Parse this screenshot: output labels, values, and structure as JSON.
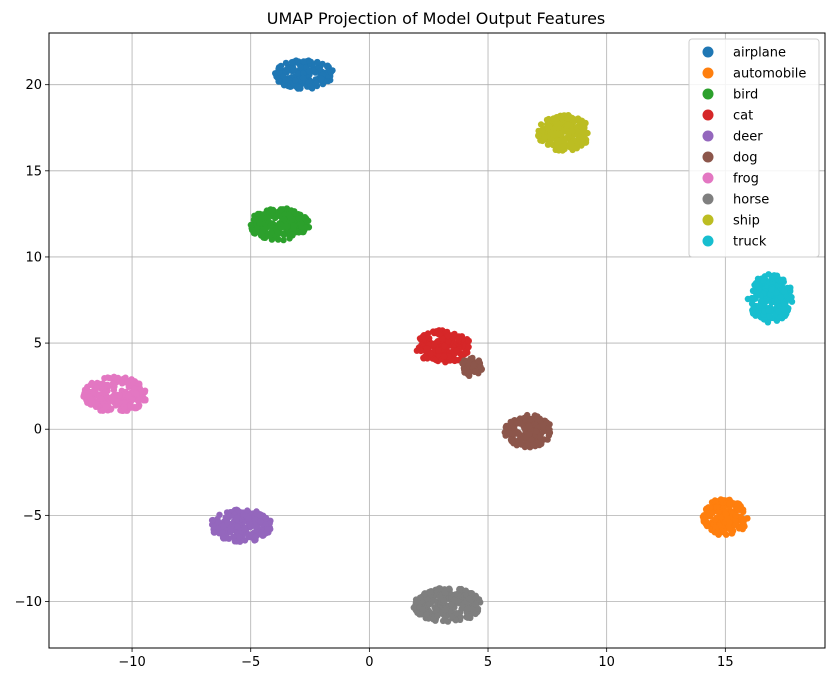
{
  "chart_data": {
    "type": "scatter",
    "title": "UMAP Projection of Model Output Features",
    "xlabel": "",
    "ylabel": "",
    "xlim": [
      -13.5,
      19.2
    ],
    "ylim": [
      -12.7,
      23
    ],
    "xticks": [
      -10,
      -5,
      0,
      5,
      10,
      15
    ],
    "yticks": [
      -10,
      -5,
      0,
      5,
      10,
      15,
      20
    ],
    "grid": true,
    "legend_position": "top-right",
    "series": [
      {
        "name": "airplane",
        "color": "#1f77b4",
        "clusters": [
          {
            "cx": -2.75,
            "cy": 20.6,
            "rx": 1.25,
            "ry": 0.85
          }
        ]
      },
      {
        "name": "automobile",
        "color": "#ff7f0e",
        "clusters": [
          {
            "cx": 15.0,
            "cy": -5.1,
            "rx": 0.95,
            "ry": 1.1
          }
        ]
      },
      {
        "name": "bird",
        "color": "#2ca02c",
        "clusters": [
          {
            "cx": -3.8,
            "cy": 11.9,
            "rx": 1.3,
            "ry": 0.95
          }
        ]
      },
      {
        "name": "cat",
        "color": "#d62728",
        "clusters": [
          {
            "cx": 3.1,
            "cy": 4.8,
            "rx": 1.2,
            "ry": 0.95
          }
        ]
      },
      {
        "name": "deer",
        "color": "#9467bd",
        "clusters": [
          {
            "cx": -5.4,
            "cy": -5.6,
            "rx": 1.3,
            "ry": 0.95
          }
        ]
      },
      {
        "name": "dog",
        "color": "#8c564b",
        "clusters": [
          {
            "cx": 6.7,
            "cy": -0.1,
            "rx": 1.0,
            "ry": 0.95
          },
          {
            "cx": 4.3,
            "cy": 3.6,
            "rx": 0.45,
            "ry": 0.55
          }
        ]
      },
      {
        "name": "frog",
        "color": "#e377c2",
        "clusters": [
          {
            "cx": -10.7,
            "cy": 2.0,
            "rx": 1.35,
            "ry": 1.05
          }
        ]
      },
      {
        "name": "horse",
        "color": "#7f7f7f",
        "clusters": [
          {
            "cx": 3.3,
            "cy": -10.2,
            "rx": 1.45,
            "ry": 1.0
          }
        ]
      },
      {
        "name": "ship",
        "color": "#bcbd22",
        "clusters": [
          {
            "cx": 8.2,
            "cy": 17.2,
            "rx": 1.1,
            "ry": 1.05
          }
        ]
      },
      {
        "name": "truck",
        "color": "#17becf",
        "clusters": [
          {
            "cx": 16.9,
            "cy": 7.6,
            "rx": 0.95,
            "ry": 1.4
          }
        ]
      }
    ]
  }
}
